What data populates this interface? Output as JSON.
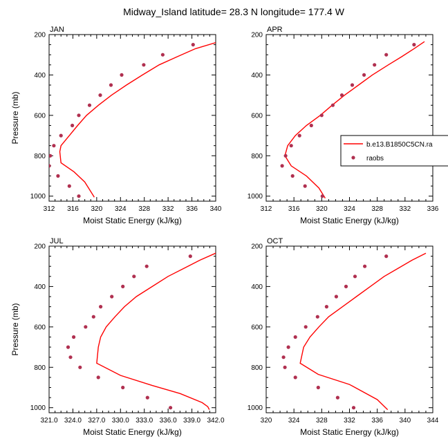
{
  "title": "Midway_Island  latitude= 28.3 N longitude= 177.4 W",
  "colors": {
    "model_line": "#ff0000",
    "obs_marker": "#b03050",
    "axis": "#000000"
  },
  "legend": {
    "placement": "right of APR panel",
    "model_label": "b.e13.B1850C5CN.ra",
    "obs_label": "raobs"
  },
  "pressure_levels": [
    250,
    300,
    350,
    400,
    450,
    500,
    550,
    600,
    650,
    700,
    750,
    800,
    850,
    900,
    950,
    1000
  ],
  "chart_data": [
    {
      "type": "line",
      "panel": "JAN",
      "xlabel": "Moist Static Energy (kJ/kg)",
      "ylabel": "Pressure (mb)",
      "xlim": [
        312,
        340
      ],
      "ylim": [
        200,
        1025
      ],
      "y_inverted": true,
      "xticks": [
        "312",
        "316",
        "320",
        "324",
        "328",
        "332",
        "336",
        "340"
      ],
      "yticks": [
        "200",
        "400",
        "600",
        "800",
        "1000"
      ],
      "series": [
        {
          "name": "b.e13.B1850C5CN.ra",
          "style": "line",
          "x": [
            340.0,
            336.6,
            333.5,
            330.5,
            327.7,
            325.0,
            322.5,
            320.3,
            318.3,
            316.8,
            315.4,
            314.0,
            313.8,
            314.0,
            316.2,
            318.0,
            319.6
          ],
          "y": [
            240,
            270,
            310,
            350,
            400,
            450,
            500,
            550,
            600,
            650,
            700,
            750,
            780,
            835,
            880,
            930,
            1005
          ]
        },
        {
          "name": "raobs",
          "style": "markers",
          "x": [
            336.2,
            331.1,
            327.9,
            324.2,
            322.4,
            320.6,
            318.8,
            317.0,
            315.9,
            314.0,
            312.8,
            312.2,
            312.0,
            313.5,
            315.4,
            317.0
          ],
          "y": [
            250,
            300,
            350,
            400,
            450,
            500,
            550,
            600,
            650,
            700,
            750,
            800,
            850,
            900,
            950,
            1000
          ]
        }
      ]
    },
    {
      "type": "line",
      "panel": "APR",
      "xlabel": "Moist Static Energy (kJ/kg)",
      "ylabel": "",
      "xlim": [
        312,
        336
      ],
      "ylim": [
        200,
        1025
      ],
      "y_inverted": true,
      "xticks": [
        "312",
        "316",
        "320",
        "324",
        "328",
        "332",
        "336"
      ],
      "yticks": [
        "200",
        "400",
        "600",
        "800",
        "1000"
      ],
      "series": [
        {
          "name": "b.e13.B1850C5CN.ra",
          "style": "line",
          "x": [
            334.8,
            333.3,
            331.5,
            329.6,
            327.3,
            325.3,
            323.3,
            321.5,
            319.8,
            317.8,
            316.2,
            315.1,
            314.7,
            315.6,
            317.8,
            319.6,
            320.5
          ],
          "y": [
            235,
            270,
            310,
            350,
            400,
            450,
            500,
            550,
            600,
            650,
            700,
            750,
            800,
            850,
            900,
            960,
            1010
          ]
        },
        {
          "name": "raobs",
          "style": "markers",
          "x": [
            333.3,
            329.3,
            327.6,
            326.1,
            324.4,
            322.9,
            321.6,
            320.0,
            318.5,
            316.8,
            315.6,
            314.8,
            314.3,
            315.8,
            317.6,
            320.1
          ],
          "y": [
            250,
            300,
            350,
            400,
            450,
            500,
            550,
            600,
            650,
            700,
            750,
            800,
            850,
            900,
            950,
            1000
          ]
        }
      ]
    },
    {
      "type": "line",
      "panel": "JUL",
      "xlabel": "Moist Static Energy (kJ/kg)",
      "ylabel": "Pressure (mb)",
      "xlim": [
        321,
        342
      ],
      "ylim": [
        200,
        1025
      ],
      "y_inverted": true,
      "xticks": [
        "321.0",
        "324.0",
        "327.0",
        "330.0",
        "333.0",
        "336.0",
        "339.0",
        "342.0"
      ],
      "yticks": [
        "200",
        "400",
        "600",
        "800",
        "1000"
      ],
      "series": [
        {
          "name": "b.e13.B1850C5CN.ra",
          "style": "line",
          "x": [
            342.0,
            340.0,
            338.0,
            336.0,
            334.0,
            332.0,
            330.5,
            329.3,
            328.2,
            327.5,
            327.2,
            327.0,
            330.0,
            334.0,
            337.5,
            340.3,
            341.0,
            341.2
          ],
          "y": [
            235,
            270,
            310,
            350,
            400,
            450,
            500,
            550,
            600,
            650,
            700,
            780,
            840,
            890,
            930,
            975,
            995,
            1010
          ]
        },
        {
          "name": "raobs",
          "style": "markers",
          "x": [
            338.8,
            333.3,
            331.7,
            330.3,
            328.9,
            327.5,
            326.6,
            325.6,
            324.1,
            323.4,
            323.7,
            324.9,
            327.2,
            330.3,
            333.4,
            336.3
          ],
          "y": [
            250,
            300,
            350,
            400,
            450,
            500,
            550,
            600,
            650,
            700,
            750,
            800,
            850,
            900,
            950,
            1000
          ]
        }
      ]
    },
    {
      "type": "line",
      "panel": "OCT",
      "xlabel": "Moist Static Energy (kJ/kg)",
      "ylabel": "",
      "xlim": [
        320,
        344
      ],
      "ylim": [
        200,
        1025
      ],
      "y_inverted": true,
      "xticks": [
        "320",
        "324",
        "328",
        "332",
        "336",
        "340",
        "344"
      ],
      "yticks": [
        "200",
        "400",
        "600",
        "800",
        "1000"
      ],
      "series": [
        {
          "name": "b.e13.B1850C5CN.ra",
          "style": "line",
          "x": [
            343.0,
            341.0,
            339.0,
            337.0,
            335.0,
            333.0,
            331.0,
            329.0,
            327.6,
            326.3,
            325.4,
            324.9,
            327.5,
            332.0,
            336.0,
            337.5
          ],
          "y": [
            235,
            270,
            310,
            350,
            400,
            450,
            500,
            550,
            600,
            650,
            700,
            780,
            835,
            885,
            960,
            1010
          ]
        },
        {
          "name": "raobs",
          "style": "markers",
          "x": [
            337.3,
            334.2,
            332.8,
            331.5,
            330.1,
            328.7,
            327.4,
            325.7,
            324.2,
            323.2,
            322.5,
            322.7,
            324.2,
            327.5,
            330.3,
            332.6
          ],
          "y": [
            250,
            300,
            350,
            400,
            450,
            500,
            550,
            600,
            650,
            700,
            750,
            800,
            850,
            900,
            950,
            1000
          ]
        }
      ]
    }
  ]
}
